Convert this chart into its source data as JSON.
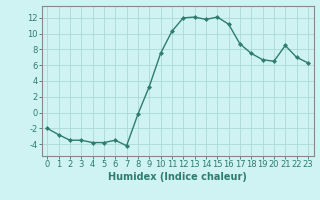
{
  "x": [
    0,
    1,
    2,
    3,
    4,
    5,
    6,
    7,
    8,
    9,
    10,
    11,
    12,
    13,
    14,
    15,
    16,
    17,
    18,
    19,
    20,
    21,
    22,
    23
  ],
  "y": [
    -2,
    -2.8,
    -3.5,
    -3.5,
    -3.8,
    -3.8,
    -3.5,
    -4.2,
    -0.2,
    3.3,
    7.5,
    10.3,
    12.0,
    12.1,
    11.8,
    12.1,
    11.2,
    8.7,
    7.5,
    6.7,
    6.5,
    8.5,
    7.0,
    6.3
  ],
  "xlabel": "Humidex (Indice chaleur)",
  "ylim": [
    -5.5,
    13.5
  ],
  "xlim": [
    -0.5,
    23.5
  ],
  "yticks": [
    -4,
    -2,
    0,
    2,
    4,
    6,
    8,
    10,
    12
  ],
  "xticks": [
    0,
    1,
    2,
    3,
    4,
    5,
    6,
    7,
    8,
    9,
    10,
    11,
    12,
    13,
    14,
    15,
    16,
    17,
    18,
    19,
    20,
    21,
    22,
    23
  ],
  "line_color": "#2e7d6e",
  "marker": "D",
  "marker_size": 2.0,
  "bg_color": "#cff2f2",
  "grid_color": "#aad8d8",
  "xlabel_fontsize": 7,
  "tick_fontsize": 6,
  "line_width": 1.0
}
